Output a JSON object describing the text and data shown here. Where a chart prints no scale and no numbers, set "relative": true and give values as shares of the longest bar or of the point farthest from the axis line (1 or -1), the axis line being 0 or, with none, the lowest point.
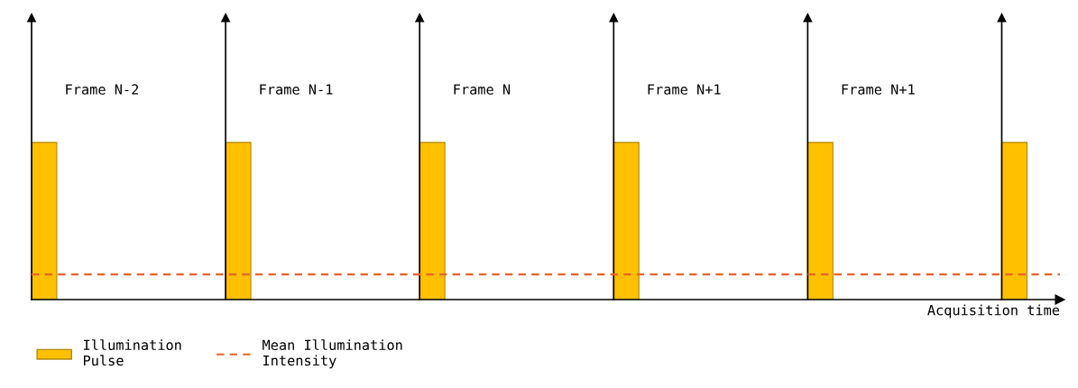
{
  "chart_data": {
    "type": "bar",
    "relative": true,
    "categories": [
      null,
      null,
      null,
      null,
      null,
      null
    ],
    "series": [
      {
        "name": "Illumination Pulse",
        "color": "#ffc000",
        "values": [
          1,
          1,
          1,
          1,
          1,
          1
        ]
      }
    ],
    "xlabel": "Acquisition time",
    "annotations": [
      "Frame N-2",
      "Frame N-1",
      "Frame N",
      "Frame N+1",
      "Frame N+1"
    ],
    "ref_lines": [
      {
        "axis": "y",
        "value": 0.16,
        "label": "Mean Illumination Intensity",
        "color": "#e8622a",
        "line_style": "dashed"
      }
    ],
    "legend": "bottom left",
    "grid": false,
    "tick_labels": false
  }
}
